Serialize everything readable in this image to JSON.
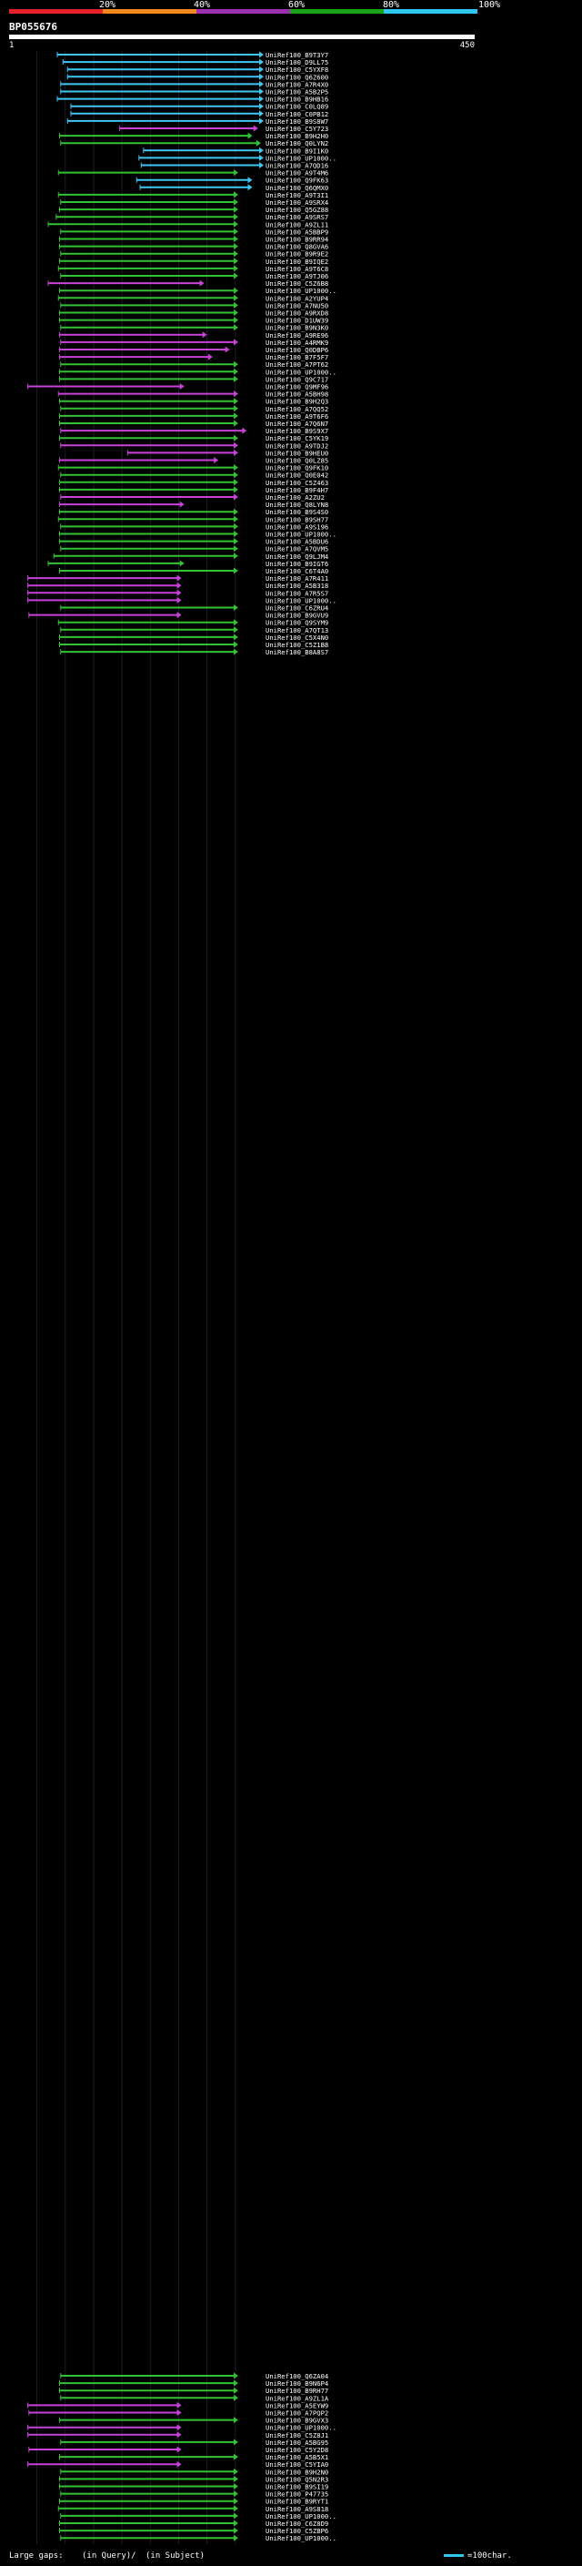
{
  "chart_data": {
    "type": "alignment-overview",
    "title": "BP055676",
    "query_length": 450,
    "scale_start_label": "1",
    "scale_end_label": "450",
    "identity_scale": {
      "labels": [
        "20%",
        "40%",
        "60%",
        "80%",
        "100%"
      ],
      "colors": [
        "#e8202a",
        "#f08a1c",
        "#9b2fb0",
        "#19a319",
        "#2ec7f0"
      ]
    },
    "series_colors": {
      "cyan": "#3fc6f2",
      "green": "#33c233",
      "purple": "#c842d8"
    },
    "footer": {
      "large_gaps_label": "Large gaps:",
      "gap_query_label": "(in Query)/",
      "gap_subject_label": "(in Subject)",
      "scale_label": "=100char."
    },
    "hits_top": [
      {
        "label": "UniRef100_B9T3Y7",
        "color": "cyan",
        "start": 86,
        "end": 450
      },
      {
        "label": "UniRef100_D9LL75",
        "color": "cyan",
        "start": 96,
        "end": 450
      },
      {
        "label": "UniRef100_C5YXF8",
        "color": "cyan",
        "start": 104,
        "end": 450
      },
      {
        "label": "UniRef100_Q6Z600",
        "color": "cyan",
        "start": 104,
        "end": 450
      },
      {
        "label": "UniRef100_A7R4X0",
        "color": "cyan",
        "start": 92,
        "end": 450
      },
      {
        "label": "UniRef100_A5B2P5",
        "color": "cyan",
        "start": 92,
        "end": 450
      },
      {
        "label": "UniRef100_B9HB16",
        "color": "cyan",
        "start": 86,
        "end": 450
      },
      {
        "label": "UniRef100_C0LQ89",
        "color": "cyan",
        "start": 110,
        "end": 450
      },
      {
        "label": "UniRef100_C0PB12",
        "color": "cyan",
        "start": 110,
        "end": 450
      },
      {
        "label": "UniRef100_B9S8W7",
        "color": "cyan",
        "start": 104,
        "end": 450
      },
      {
        "label": "UniRef100_C5Y723",
        "color": "purple",
        "start": 196,
        "end": 440
      },
      {
        "label": "UniRef100_B9H2H0",
        "color": "green",
        "start": 90,
        "end": 430
      },
      {
        "label": "UniRef100_Q0LYN2",
        "color": "green",
        "start": 92,
        "end": 445
      },
      {
        "label": "UniRef100_B9I1K0",
        "color": "cyan",
        "start": 238,
        "end": 450
      },
      {
        "label": "UniRef100_UP1000..",
        "color": "cyan",
        "start": 230,
        "end": 450
      },
      {
        "label": "UniRef100_A7QD16",
        "color": "cyan",
        "start": 234,
        "end": 450
      },
      {
        "label": "UniRef100_A9T4M6",
        "color": "green",
        "start": 88,
        "end": 405
      },
      {
        "label": "UniRef100_Q9FK63",
        "color": "cyan",
        "start": 226,
        "end": 430
      },
      {
        "label": "UniRef100_Q6QMX0",
        "color": "cyan",
        "start": 232,
        "end": 430
      },
      {
        "label": "UniRef100_A9T3I1",
        "color": "green",
        "start": 88,
        "end": 405
      },
      {
        "label": "UniRef100_A9SRX4",
        "color": "green",
        "start": 92,
        "end": 405
      },
      {
        "label": "UniRef100_Q5GZ88",
        "color": "green",
        "start": 90,
        "end": 405
      },
      {
        "label": "UniRef100_A9SRS7",
        "color": "green",
        "start": 84,
        "end": 405
      },
      {
        "label": "UniRef100_A9ZL11",
        "color": "green",
        "start": 70,
        "end": 405
      },
      {
        "label": "UniRef100_A5BBP9",
        "color": "green",
        "start": 92,
        "end": 405
      },
      {
        "label": "UniRef100_B9RR94",
        "color": "green",
        "start": 90,
        "end": 405
      },
      {
        "label": "UniRef100_Q8GVA6",
        "color": "green",
        "start": 90,
        "end": 405
      },
      {
        "label": "UniRef100_B9R9E2",
        "color": "green",
        "start": 92,
        "end": 405
      },
      {
        "label": "UniRef100_B9IQE2",
        "color": "green",
        "start": 90,
        "end": 405
      },
      {
        "label": "UniRef100_A9T6C8",
        "color": "green",
        "start": 88,
        "end": 405
      },
      {
        "label": "UniRef100_A9TJ06",
        "color": "green",
        "start": 92,
        "end": 405
      },
      {
        "label": "UniRef100_C5Z6B8",
        "color": "purple",
        "start": 70,
        "end": 345
      },
      {
        "label": "UniRef100_UP1000..",
        "color": "green",
        "start": 90,
        "end": 405
      },
      {
        "label": "UniRef100_A2YUP4",
        "color": "green",
        "start": 88,
        "end": 405
      },
      {
        "label": "UniRef100_A7NU50",
        "color": "green",
        "start": 92,
        "end": 405
      },
      {
        "label": "UniRef100_A9RXD8",
        "color": "green",
        "start": 90,
        "end": 405
      },
      {
        "label": "UniRef100_D1UW39",
        "color": "green",
        "start": 90,
        "end": 405
      },
      {
        "label": "UniRef100_B9N3K0",
        "color": "green",
        "start": 92,
        "end": 405
      },
      {
        "label": "UniRef100_A9RE96",
        "color": "purple",
        "start": 90,
        "end": 350
      },
      {
        "label": "UniRef100_A4RMK9",
        "color": "purple",
        "start": 92,
        "end": 405
      },
      {
        "label": "UniRef100_Q0DBP6",
        "color": "purple",
        "start": 90,
        "end": 390
      },
      {
        "label": "UniRef100_B7F5F7",
        "color": "purple",
        "start": 90,
        "end": 360
      },
      {
        "label": "UniRef100_A7PT62",
        "color": "green",
        "start": 92,
        "end": 405
      },
      {
        "label": "UniRef100_UP1000..",
        "color": "green",
        "start": 90,
        "end": 405
      },
      {
        "label": "UniRef100_Q9C717",
        "color": "green",
        "start": 90,
        "end": 405
      },
      {
        "label": "UniRef100_Q9MF96",
        "color": "purple",
        "start": 34,
        "end": 310
      },
      {
        "label": "UniRef100_A5BH98",
        "color": "purple",
        "start": 88,
        "end": 405
      },
      {
        "label": "UniRef100_B9H2Q3",
        "color": "green",
        "start": 90,
        "end": 405
      },
      {
        "label": "UniRef100_A7QQ52",
        "color": "green",
        "start": 92,
        "end": 405
      },
      {
        "label": "UniRef100_A9T6F6",
        "color": "green",
        "start": 90,
        "end": 405
      },
      {
        "label": "UniRef100_A7Q6N7",
        "color": "green",
        "start": 90,
        "end": 405
      },
      {
        "label": "UniRef100_B9S9X7",
        "color": "purple",
        "start": 92,
        "end": 420
      },
      {
        "label": "UniRef100_C5YK19",
        "color": "green",
        "start": 90,
        "end": 405
      },
      {
        "label": "UniRef100_A9TDJ2",
        "color": "purple",
        "start": 92,
        "end": 405
      },
      {
        "label": "UniRef100_B9HEU0",
        "color": "purple",
        "start": 210,
        "end": 405
      },
      {
        "label": "UniRef100_Q0LZ85",
        "color": "purple",
        "start": 90,
        "end": 370
      },
      {
        "label": "UniRef100_Q9FK10",
        "color": "green",
        "start": 88,
        "end": 405
      },
      {
        "label": "UniRef100_Q0E042",
        "color": "green",
        "start": 92,
        "end": 405
      },
      {
        "label": "UniRef100_C5Z463",
        "color": "green",
        "start": 90,
        "end": 405
      },
      {
        "label": "UniRef100_B9F4H7",
        "color": "green",
        "start": 90,
        "end": 405
      },
      {
        "label": "UniRef100_A2ZU2",
        "color": "purple",
        "start": 92,
        "end": 405
      },
      {
        "label": "UniRef100_Q8LYN8",
        "color": "purple",
        "start": 90,
        "end": 310
      },
      {
        "label": "UniRef100_B9S4S0",
        "color": "green",
        "start": 90,
        "end": 405
      },
      {
        "label": "UniRef100_B9SH77",
        "color": "green",
        "start": 88,
        "end": 405
      },
      {
        "label": "UniRef100_A9S196",
        "color": "green",
        "start": 92,
        "end": 405
      },
      {
        "label": "UniRef100_UP1000..",
        "color": "green",
        "start": 90,
        "end": 405
      },
      {
        "label": "UniRef100_A5BDU6",
        "color": "green",
        "start": 90,
        "end": 405
      },
      {
        "label": "UniRef100_A7QVM5",
        "color": "green",
        "start": 92,
        "end": 405
      },
      {
        "label": "UniRef100_Q9LJM4",
        "color": "green",
        "start": 80,
        "end": 405
      },
      {
        "label": "UniRef100_B9IGT6",
        "color": "green",
        "start": 70,
        "end": 310
      },
      {
        "label": "UniRef100_C6T4A0",
        "color": "green",
        "start": 90,
        "end": 405
      },
      {
        "label": "UniRef100_A7R411",
        "color": "purple",
        "start": 34,
        "end": 305
      },
      {
        "label": "UniRef100_A5B318",
        "color": "purple",
        "start": 34,
        "end": 305
      },
      {
        "label": "UniRef100_A7R5S7",
        "color": "purple",
        "start": 34,
        "end": 305
      },
      {
        "label": "UniRef100_UP1000..",
        "color": "purple",
        "start": 34,
        "end": 305
      },
      {
        "label": "UniRef100_C6ZRU4",
        "color": "green",
        "start": 92,
        "end": 405
      },
      {
        "label": "UniRef100_B9GVU9",
        "color": "purple",
        "start": 36,
        "end": 305
      },
      {
        "label": "UniRef100_Q9SYM9",
        "color": "green",
        "start": 88,
        "end": 405
      },
      {
        "label": "UniRef100_A7QT13",
        "color": "green",
        "start": 92,
        "end": 405
      },
      {
        "label": "UniRef100_C5X4N0",
        "color": "green",
        "start": 90,
        "end": 405
      },
      {
        "label": "UniRef100_C5Z1B8",
        "color": "green",
        "start": 90,
        "end": 405
      },
      {
        "label": "UniRef100_B8A8S7",
        "color": "green",
        "start": 92,
        "end": 405
      }
    ],
    "hits_bottom": [
      {
        "label": "UniRef100_Q6ZA04",
        "color": "green",
        "start": 92,
        "end": 405
      },
      {
        "label": "UniRef100_B9N6P4",
        "color": "green",
        "start": 90,
        "end": 405
      },
      {
        "label": "UniRef100_B9RH77",
        "color": "green",
        "start": 90,
        "end": 405
      },
      {
        "label": "UniRef100_A9ZL1A",
        "color": "green",
        "start": 92,
        "end": 405
      },
      {
        "label": "UniRef100_A5EYW9",
        "color": "purple",
        "start": 34,
        "end": 305
      },
      {
        "label": "UniRef100_A7PQP2",
        "color": "purple",
        "start": 36,
        "end": 305
      },
      {
        "label": "UniRef100_B9GVX3",
        "color": "green",
        "start": 90,
        "end": 405
      },
      {
        "label": "UniRef100_UP1000..",
        "color": "purple",
        "start": 34,
        "end": 305
      },
      {
        "label": "UniRef100_C5Z8J1",
        "color": "purple",
        "start": 34,
        "end": 305
      },
      {
        "label": "UniRef100_A5BG95",
        "color": "green",
        "start": 92,
        "end": 405
      },
      {
        "label": "UniRef100_C5Y2D8",
        "color": "purple",
        "start": 36,
        "end": 305
      },
      {
        "label": "UniRef100_A5B5X1",
        "color": "green",
        "start": 90,
        "end": 405
      },
      {
        "label": "UniRef100_C5YIA0",
        "color": "purple",
        "start": 34,
        "end": 305
      },
      {
        "label": "UniRef100_B9H2N0",
        "color": "green",
        "start": 92,
        "end": 405
      },
      {
        "label": "UniRef100_Q5N2R3",
        "color": "green",
        "start": 90,
        "end": 405
      },
      {
        "label": "UniRef100_B9SI19",
        "color": "green",
        "start": 90,
        "end": 405
      },
      {
        "label": "UniRef100_P47735",
        "color": "green",
        "start": 92,
        "end": 405
      },
      {
        "label": "UniRef100_B9RYT1",
        "color": "green",
        "start": 90,
        "end": 405
      },
      {
        "label": "UniRef100_A9S818",
        "color": "green",
        "start": 88,
        "end": 405
      },
      {
        "label": "UniRef100_UP1000..",
        "color": "green",
        "start": 92,
        "end": 405
      },
      {
        "label": "UniRef100_C6Z8D9",
        "color": "green",
        "start": 90,
        "end": 405
      },
      {
        "label": "UniRef100_C5ZBP6",
        "color": "green",
        "start": 90,
        "end": 405
      },
      {
        "label": "UniRef100_UP1000..",
        "color": "green",
        "start": 92,
        "end": 405
      }
    ]
  }
}
